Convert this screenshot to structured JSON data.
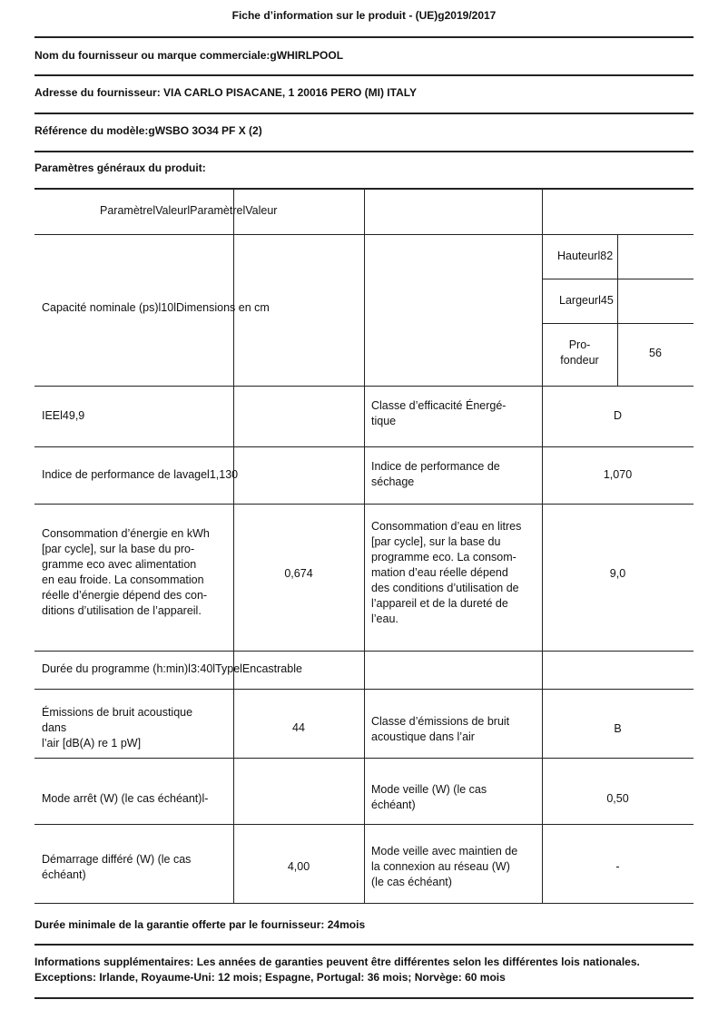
{
  "title": "Fiche d’information sur le produit - (UE)g2019/2017",
  "supplier": "Nom du fournisseur ou marque commerciale:gWHIRLPOOL",
  "address": "Adresse du fournisseur: VIA CARLO PISACANE, 1 20016 PERO (MI) ITALY",
  "model": "Référence du modèle:gWSBO 3O34 PF X (2)",
  "general": "Paramètres généraux du produit:",
  "table": {
    "header": "ParamètrelValeurlParamètrelValeur",
    "capacity": "Capacité nominale (ps)l10lDimensions en cm",
    "height": "Hauteurl82",
    "width": "Largeurl45",
    "depth_label": "Pro-\nfondeur",
    "depth_value": "56",
    "eei": "IEEl49,9",
    "energy_class_label": "Classe d’efficacité Énergé-\ntique",
    "energy_class_value": "D",
    "wash_perf": "Indice de performance de lavagel1,130",
    "dry_perf_label": "Indice de performance de\nséchage",
    "dry_perf_value": "1,070",
    "energy_cons_label": "Consommation d’énergie en kWh\n[par cycle], sur la base du pro-\ngramme eco avec alimentation\nen eau froide. La consommation\nréelle d’énergie dépend des con-\nditions d’utilisation de l’appareil.",
    "energy_cons_value": "0,674",
    "water_cons_label": "Consommation d’eau en litres\n[par cycle], sur la base du\nprogramme eco. La consom-\nmation d’eau réelle dépend\ndes conditions d’utilisation de\nl’appareil et de la dureté de\nl’eau.",
    "water_cons_value": "9,0",
    "duration": "Durée du programme (h:min)l3:40lTypelEncastrable",
    "noise_label": "Émissions de bruit acoustique\ndans\nl’air [dB(A) re 1 pW]",
    "noise_value": "44",
    "noise_class_label": "Classe d’émissions de bruit\nacoustique dans l’air",
    "noise_class_value": "B",
    "off_mode": "Mode arrêt (W) (le cas échéant)l-",
    "standby_label": "Mode veille (W) (le cas\néchéant)",
    "standby_value": "0,50",
    "delay_label": "Démarrage différé (W) (le cas\néchéant)",
    "delay_value": "4,00",
    "network_standby_label": "Mode veille avec maintien de\nla connexion au réseau (W)\n(le cas échéant)",
    "network_standby_value": "-"
  },
  "warranty": "Durée minimale de la garantie offerte par le fournisseur: 24mois",
  "info_line1": "Informations supplémentaires: Les années de garanties peuvent être différentes selon les différentes lois nationales.",
  "info_line2": "Exceptions: Irlande, Royaume-Uni: 12 mois; Espagne, Portugal: 36 mois; Norvège: 60 mois"
}
